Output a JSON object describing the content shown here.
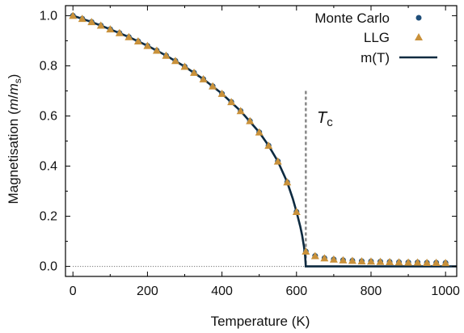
{
  "chart_data": {
    "type": "line",
    "xlabel": "Temperature (K)",
    "ylabel": {
      "prefix": "Magnetisation (",
      "m": "m",
      "slash": "/",
      "ms": "m",
      "sub": "s",
      "suffix": ")"
    },
    "xlim": [
      -20,
      1030
    ],
    "ylim": [
      -0.04,
      1.04
    ],
    "xticks": [
      0,
      200,
      400,
      600,
      800,
      1000
    ],
    "yticks": [
      0.0,
      0.2,
      0.4,
      0.6,
      0.8,
      1.0
    ],
    "ytick_labels": [
      "0.0",
      "0.2",
      "0.4",
      "0.6",
      "0.8",
      "1.0"
    ],
    "tc": {
      "value": 625,
      "symbol": "T",
      "sub": "c",
      "line_top": 0.7
    },
    "colors": {
      "monte_carlo": "#1f4e79",
      "llg": "#c9913a",
      "mT": "#0d2a40",
      "tc_line": "#888888",
      "zero_line": "#555555"
    },
    "legend": {
      "placement": "top-right",
      "entries": [
        "Monte Carlo",
        "LLG",
        "m(T)"
      ]
    },
    "series": [
      {
        "name": "Monte Carlo",
        "x": [
          0,
          25,
          50,
          75,
          100,
          125,
          150,
          175,
          200,
          225,
          250,
          275,
          300,
          325,
          350,
          375,
          400,
          425,
          450,
          475,
          500,
          525,
          550,
          575,
          600,
          625,
          650,
          675,
          700,
          725,
          750,
          775,
          800,
          825,
          850,
          875,
          900,
          925,
          950,
          975,
          1000
        ],
        "y": [
          1.0,
          0.988,
          0.975,
          0.961,
          0.946,
          0.931,
          0.915,
          0.898,
          0.88,
          0.861,
          0.841,
          0.82,
          0.797,
          0.773,
          0.747,
          0.719,
          0.689,
          0.656,
          0.62,
          0.58,
          0.535,
          0.482,
          0.419,
          0.336,
          0.218,
          0.06,
          0.042,
          0.033,
          0.028,
          0.025,
          0.023,
          0.021,
          0.02,
          0.019,
          0.018,
          0.017,
          0.016,
          0.016,
          0.015,
          0.015,
          0.014
        ]
      },
      {
        "name": "LLG",
        "x": [
          0,
          25,
          50,
          75,
          100,
          125,
          150,
          175,
          200,
          225,
          250,
          275,
          300,
          325,
          350,
          375,
          400,
          425,
          450,
          475,
          500,
          525,
          550,
          575,
          600,
          625,
          650,
          675,
          700,
          725,
          750,
          775,
          800,
          825,
          850,
          875,
          900,
          925,
          950,
          975,
          1000
        ],
        "y": [
          1.0,
          0.988,
          0.975,
          0.961,
          0.946,
          0.931,
          0.915,
          0.898,
          0.88,
          0.861,
          0.841,
          0.82,
          0.797,
          0.773,
          0.747,
          0.719,
          0.689,
          0.656,
          0.62,
          0.58,
          0.535,
          0.482,
          0.419,
          0.336,
          0.218,
          0.06,
          0.042,
          0.033,
          0.028,
          0.025,
          0.023,
          0.021,
          0.02,
          0.019,
          0.018,
          0.017,
          0.016,
          0.016,
          0.015,
          0.015,
          0.014
        ]
      },
      {
        "name": "m(T)",
        "x": [
          0,
          50,
          100,
          150,
          200,
          250,
          300,
          350,
          400,
          450,
          500,
          525,
          550,
          575,
          590,
          600,
          610,
          615,
          620,
          623,
          625,
          1030
        ],
        "y": [
          1.0,
          0.975,
          0.946,
          0.915,
          0.88,
          0.841,
          0.797,
          0.747,
          0.689,
          0.62,
          0.535,
          0.482,
          0.419,
          0.336,
          0.27,
          0.218,
          0.16,
          0.125,
          0.08,
          0.045,
          0.0,
          0.0
        ]
      }
    ]
  }
}
